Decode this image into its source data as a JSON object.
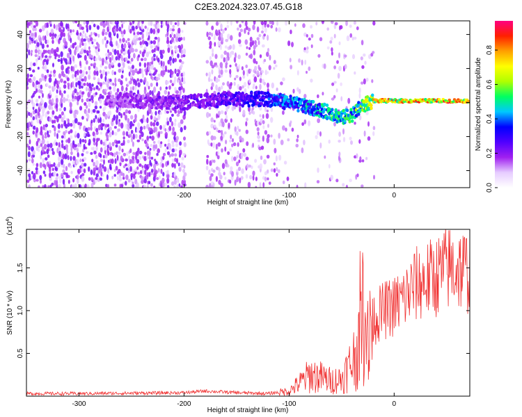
{
  "chart_data": [
    {
      "type": "heatmap",
      "title": "C2E3.2024.323.07.45.G18",
      "xlabel": "Height of straight line (km)",
      "ylabel": "Frequency (Hz)",
      "xlim": [
        -350,
        72
      ],
      "ylim": [
        -50,
        48
      ],
      "x_ticks": [
        -300,
        -200,
        -100,
        0
      ],
      "x_tick_labels": [
        "-300",
        "-200",
        "-100",
        "0"
      ],
      "y_ticks": [
        40,
        20,
        0,
        -20,
        -40
      ],
      "y_tick_labels": [
        "40",
        "20",
        "0",
        "-20",
        "-40"
      ],
      "colorbar": {
        "label": "Normalized spectral amplitude",
        "range": [
          0,
          0.97
        ],
        "ticks": [
          0.0,
          0.2,
          0.4,
          0.6,
          0.8
        ],
        "tick_labels": [
          "0.0",
          "0.2",
          "0.4",
          "0.6",
          "0.8"
        ],
        "colors": [
          "#ffffff",
          "#e6ccff",
          "#a020f0",
          "#5000ff",
          "#0000ff",
          "#00c8ff",
          "#00ff60",
          "#b0ff00",
          "#ffff00",
          "#ffa000",
          "#ff2000",
          "#ff0080"
        ]
      },
      "ridge": {
        "x": [
          -270,
          -240,
          -200,
          -160,
          -120,
          -100,
          -80,
          -60,
          -50,
          -40,
          -30,
          -20,
          0,
          30,
          72
        ],
        "y": [
          2,
          1,
          0,
          2,
          2,
          0,
          -3,
          -6,
          -9,
          -7,
          -2,
          1,
          1,
          1,
          1
        ],
        "amplitude": [
          0.2,
          0.22,
          0.25,
          0.3,
          0.38,
          0.45,
          0.5,
          0.55,
          0.55,
          0.55,
          0.65,
          0.8,
          0.85,
          0.88,
          0.9
        ]
      },
      "grid": false
    },
    {
      "type": "line",
      "title": "",
      "xlabel": "Height of straight line (km)",
      "ylabel": "SNR (10 * v/v)",
      "y_multiplier": "(x10",
      "y_multiplier_exp": "4",
      "y_multiplier_close": ")",
      "xlim": [
        -350,
        72
      ],
      "ylim": [
        0,
        1.95
      ],
      "x_ticks": [
        -300,
        -200,
        -100,
        0
      ],
      "x_tick_labels": [
        "-300",
        "-200",
        "-100",
        "0"
      ],
      "y_ticks": [
        0.5,
        1.0,
        1.5
      ],
      "y_tick_labels": [
        "0.5",
        "1.0",
        "1.5"
      ],
      "series": [
        {
          "color": "#f03030",
          "x": [
            -350,
            -300,
            -250,
            -200,
            -180,
            -150,
            -120,
            -100,
            -90,
            -80,
            -70,
            -60,
            -50,
            -40,
            -35,
            -30,
            -25,
            -20,
            -15,
            -10,
            0,
            10,
            20,
            30,
            40,
            50,
            60,
            72
          ],
          "y": [
            0.03,
            0.03,
            0.035,
            0.04,
            0.06,
            0.04,
            0.03,
            0.06,
            0.15,
            0.25,
            0.22,
            0.18,
            0.2,
            0.4,
            0.55,
            0.8,
            0.85,
            0.9,
            0.95,
            1.0,
            1.05,
            1.15,
            1.3,
            1.35,
            1.4,
            1.5,
            1.5,
            1.45
          ]
        }
      ],
      "grid": false
    }
  ]
}
